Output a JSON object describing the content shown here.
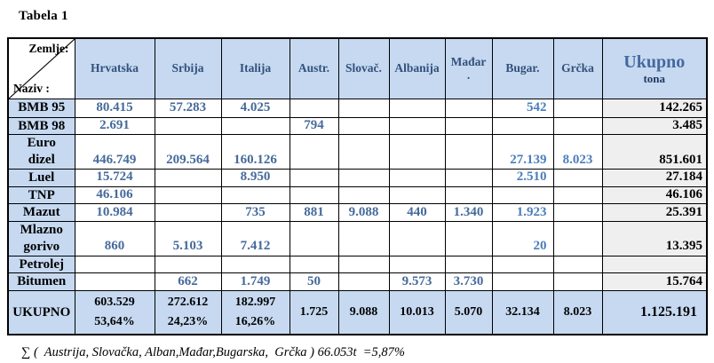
{
  "title": "Tabela 1",
  "table": {
    "corner": {
      "top_right": "Zemlje:",
      "bottom_left": "Naziv :"
    },
    "columns": [
      "Hrvatska",
      "Srbija",
      "Italija",
      "Austr.",
      "Slovač.",
      "Albanija",
      "Mađar\n.",
      "Bugar.",
      "Grčka"
    ],
    "total_column": {
      "label": "Ukupno",
      "sublabel": "tona"
    },
    "rows": [
      {
        "label": "BMB 95",
        "values": [
          "80.415",
          "57.283",
          "4.025",
          "",
          "",
          "",
          "",
          "542",
          ""
        ],
        "total": "142.265"
      },
      {
        "label": "BMB 98",
        "values": [
          "2.691",
          "",
          "",
          "794",
          "",
          "",
          "",
          "",
          ""
        ],
        "total": "3.485"
      },
      {
        "label": "Euro\ndizel",
        "values": [
          "446.749",
          "209.564",
          "160.126",
          "",
          "",
          "",
          "",
          "27.139",
          "8.023"
        ],
        "total": "851.601"
      },
      {
        "label": "Luel",
        "values": [
          "15.724",
          "",
          "8.950",
          "",
          "",
          "",
          "",
          "2.510",
          ""
        ],
        "total": "27.184"
      },
      {
        "label": "TNP",
        "values": [
          "46.106",
          "",
          "",
          "",
          "",
          "",
          "",
          "",
          ""
        ],
        "total": "46.106"
      },
      {
        "label": "Mazut",
        "values": [
          "10.984",
          "",
          "735",
          "881",
          "9.088",
          "440",
          "1.340",
          "1.923",
          ""
        ],
        "total": "25.391"
      },
      {
        "label": "Mlazno\ngorivo",
        "values": [
          "860",
          "5.103",
          "7.412",
          "",
          "",
          "",
          "",
          "20",
          ""
        ],
        "total": "13.395"
      },
      {
        "label": "Petrolej",
        "values": [
          "",
          "",
          "",
          "",
          "",
          "",
          "",
          "",
          ""
        ],
        "total": ""
      },
      {
        "label": "Bitumen",
        "values": [
          "",
          "662",
          "1.749",
          "50",
          "",
          "9.573",
          "3.730",
          "",
          ""
        ],
        "total": "15.764"
      }
    ],
    "total_row": {
      "label": "UKUPNO",
      "values": [
        "603.529\n53,64%",
        "272.612\n24,23%",
        "182.997\n16,26%",
        "1.725",
        "9.088",
        "10.013",
        "5.070",
        "32.134",
        "8.023"
      ],
      "total": "1.125.191"
    }
  },
  "footer": {
    "text": "∑ (  Austrija, Slovačka, Alban,Mađar,Bugarska,  Grčka ) 66.053t  =5,87%"
  },
  "colors": {
    "header_fill": "#c6d9f1",
    "total_column_fill": "#efefef",
    "header_text": "#33517b",
    "data_text": "#456a9b",
    "accent_text": "#4a7ebb",
    "border": "#000000"
  }
}
